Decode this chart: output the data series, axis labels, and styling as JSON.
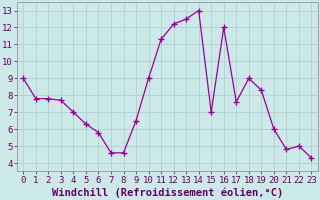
{
  "x": [
    0,
    1,
    2,
    3,
    4,
    5,
    6,
    7,
    8,
    9,
    10,
    11,
    12,
    13,
    14,
    15,
    16,
    17,
    18,
    19,
    20,
    21,
    22,
    23
  ],
  "y": [
    9.0,
    7.8,
    7.8,
    7.7,
    7.0,
    6.3,
    5.8,
    4.6,
    4.6,
    6.5,
    9.0,
    11.3,
    12.2,
    12.5,
    13.0,
    7.0,
    12.0,
    7.6,
    9.0,
    8.3,
    6.0,
    4.8,
    5.0,
    4.3
  ],
  "line_color": "#990099",
  "marker": "+",
  "bg_color": "#cce8e8",
  "grid_color": "#aacccc",
  "xlabel": "Windchill (Refroidissement éolien,°C)",
  "xlabel_color": "#660066",
  "xlim": [
    -0.5,
    23.5
  ],
  "ylim": [
    3.5,
    13.5
  ],
  "yticks": [
    4,
    5,
    6,
    7,
    8,
    9,
    10,
    11,
    12,
    13
  ],
  "xticks": [
    0,
    1,
    2,
    3,
    4,
    5,
    6,
    7,
    8,
    9,
    10,
    11,
    12,
    13,
    14,
    15,
    16,
    17,
    18,
    19,
    20,
    21,
    22,
    23
  ],
  "tick_label_fontsize": 6.5,
  "xlabel_fontsize": 7.5
}
